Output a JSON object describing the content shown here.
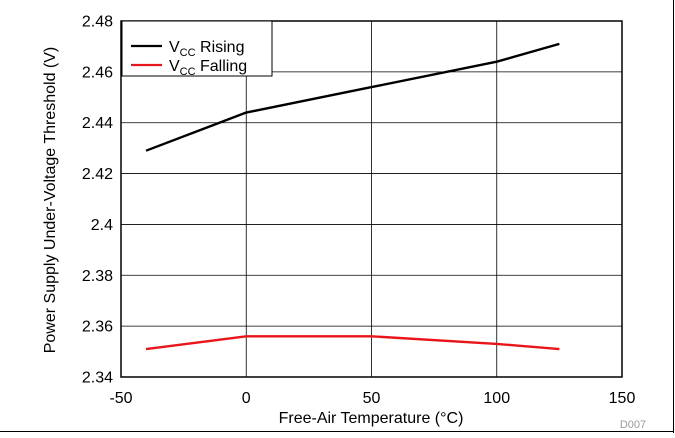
{
  "chart_data": {
    "type": "line",
    "title": "",
    "xlabel": "Free-Air Temperature (°C)",
    "ylabel": "Power Supply Under-Voltage Threshold (V)",
    "xlim": [
      -50,
      150
    ],
    "ylim": [
      2.34,
      2.48
    ],
    "x_ticks": [
      -50,
      0,
      50,
      100,
      150
    ],
    "x_tick_labels": [
      "-50",
      "0",
      "50",
      "100",
      "150"
    ],
    "y_ticks": [
      2.34,
      2.36,
      2.38,
      2.4,
      2.42,
      2.44,
      2.46,
      2.48
    ],
    "y_tick_labels": [
      "2.34",
      "2.36",
      "2.38",
      "2.4",
      "2.42",
      "2.44",
      "2.46",
      "2.48"
    ],
    "grid": true,
    "legend": {
      "placement": "top-left",
      "entries": [
        {
          "main": "V",
          "sub": "CC",
          "rest": " Rising"
        },
        {
          "main": "V",
          "sub": "CC",
          "rest": " Falling"
        }
      ]
    },
    "series": [
      {
        "name": "VCC Rising",
        "color": "#000000",
        "x": [
          -40,
          0,
          50,
          100,
          125
        ],
        "y": [
          2.429,
          2.444,
          2.454,
          2.464,
          2.471
        ]
      },
      {
        "name": "VCC Falling",
        "color": "#e8161b",
        "x": [
          -40,
          0,
          50,
          100,
          125
        ],
        "y": [
          2.351,
          2.356,
          2.356,
          2.353,
          2.351
        ]
      }
    ],
    "annotation": "D007"
  }
}
